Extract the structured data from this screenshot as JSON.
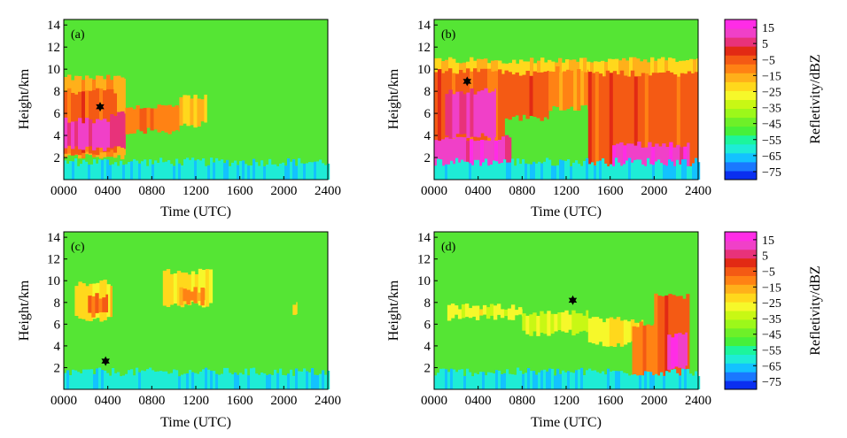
{
  "chart_data": [
    {
      "type": "heatmap",
      "panel_label": "(a)",
      "xlabel": "Time (UTC)",
      "ylabel": "Height/km",
      "xlim": [
        0,
        2400
      ],
      "ylim": [
        0,
        14.5
      ],
      "x_ticks": [
        "0000",
        "0400",
        "0800",
        "1200",
        "1600",
        "2000",
        "2400"
      ],
      "y_ticks": [
        "2",
        "4",
        "6",
        "8",
        "10",
        "12",
        "14"
      ],
      "marker": {
        "time": 330,
        "height": 6.6
      },
      "echo_regions": [
        {
          "t0": 0,
          "t1": 560,
          "h0": 2.1,
          "h1": 9.2,
          "dbz": -15
        },
        {
          "t0": 0,
          "t1": 480,
          "h0": 2.4,
          "h1": 8.0,
          "dbz": -5
        },
        {
          "t0": 0,
          "t1": 420,
          "h0": 2.8,
          "h1": 5.4,
          "dbz": 10
        },
        {
          "t0": 420,
          "t1": 560,
          "h0": 3.0,
          "h1": 6.0,
          "dbz": 5
        },
        {
          "t0": 560,
          "t1": 1050,
          "h0": 4.4,
          "h1": 6.6,
          "dbz": -10
        },
        {
          "t0": 1050,
          "t1": 1300,
          "h0": 5.0,
          "h1": 7.4,
          "dbz": -20
        }
      ]
    },
    {
      "type": "heatmap",
      "panel_label": "(b)",
      "xlabel": "Time (UTC)",
      "ylabel": "Height/km",
      "xlim": [
        0,
        2400
      ],
      "ylim": [
        0,
        14.5
      ],
      "x_ticks": [
        "0000",
        "0400",
        "0800",
        "1200",
        "1600",
        "2000",
        "2400"
      ],
      "y_ticks": [
        "2",
        "4",
        "6",
        "8",
        "10",
        "12",
        "14"
      ],
      "marker": {
        "time": 300,
        "height": 8.9
      },
      "echo_regions": [
        {
          "t0": 0,
          "t1": 2400,
          "h0": 7.0,
          "h1": 10.8,
          "dbz": -20
        },
        {
          "t0": 0,
          "t1": 640,
          "h0": 0.2,
          "h1": 9.8,
          "dbz": -5
        },
        {
          "t0": 0,
          "t1": 700,
          "h0": 0.2,
          "h1": 3.8,
          "dbz": 12
        },
        {
          "t0": 100,
          "t1": 560,
          "h0": 4.0,
          "h1": 8.0,
          "dbz": 10
        },
        {
          "t0": 640,
          "t1": 1040,
          "h0": 5.6,
          "h1": 9.6,
          "dbz": -5
        },
        {
          "t0": 1040,
          "t1": 1400,
          "h0": 6.5,
          "h1": 10.0,
          "dbz": -12
        },
        {
          "t0": 1400,
          "t1": 2400,
          "h0": 0.2,
          "h1": 9.6,
          "dbz": -5
        },
        {
          "t0": 1620,
          "t1": 2320,
          "h0": 0.3,
          "h1": 3.2,
          "dbz": 12
        }
      ]
    },
    {
      "type": "heatmap",
      "panel_label": "(c)",
      "xlabel": "Time (UTC)",
      "ylabel": "Height/km",
      "xlim": [
        0,
        2400
      ],
      "ylim": [
        0,
        14.5
      ],
      "x_ticks": [
        "0000",
        "0400",
        "0800",
        "1200",
        "1600",
        "2000",
        "2400"
      ],
      "y_ticks": [
        "2",
        "4",
        "6",
        "8",
        "10",
        "12",
        "14"
      ],
      "marker": {
        "time": 380,
        "height": 2.6
      },
      "echo_regions": [
        {
          "t0": 100,
          "t1": 440,
          "h0": 6.5,
          "h1": 9.8,
          "dbz": -22
        },
        {
          "t0": 220,
          "t1": 400,
          "h0": 6.8,
          "h1": 8.6,
          "dbz": -8
        },
        {
          "t0": 900,
          "t1": 1350,
          "h0": 7.8,
          "h1": 10.8,
          "dbz": -22
        },
        {
          "t0": 1050,
          "t1": 1280,
          "h0": 8.0,
          "h1": 9.2,
          "dbz": -12
        },
        {
          "t0": 2080,
          "t1": 2120,
          "h0": 6.8,
          "h1": 7.8,
          "dbz": -22
        }
      ]
    },
    {
      "type": "heatmap",
      "panel_label": "(d)",
      "xlabel": "Time (UTC)",
      "ylabel": "Height/km",
      "xlim": [
        0,
        2400
      ],
      "ylim": [
        0,
        14.5
      ],
      "x_ticks": [
        "0000",
        "0400",
        "0800",
        "1200",
        "1600",
        "2000",
        "2400"
      ],
      "y_ticks": [
        "2",
        "4",
        "6",
        "8",
        "10",
        "12",
        "14"
      ],
      "marker": {
        "time": 1260,
        "height": 8.2
      },
      "echo_regions": [
        {
          "t0": 120,
          "t1": 800,
          "h0": 6.6,
          "h1": 7.6,
          "dbz": -28
        },
        {
          "t0": 800,
          "t1": 1400,
          "h0": 5.2,
          "h1": 7.0,
          "dbz": -30
        },
        {
          "t0": 1400,
          "t1": 1900,
          "h0": 4.2,
          "h1": 6.4,
          "dbz": -25
        },
        {
          "t0": 1800,
          "t1": 2300,
          "h0": 0.3,
          "h1": 6.0,
          "dbz": -10
        },
        {
          "t0": 2000,
          "t1": 2320,
          "h0": 1.0,
          "h1": 8.6,
          "dbz": -5
        },
        {
          "t0": 2120,
          "t1": 2300,
          "h0": 2.0,
          "h1": 5.0,
          "dbz": 12
        }
      ]
    }
  ],
  "colorbar": {
    "label": "Refletivity/dBZ",
    "tick_labels": [
      "15",
      "5",
      "−5",
      "−15",
      "−25",
      "−35",
      "−45",
      "−55",
      "−65",
      "−75"
    ],
    "range": [
      -80,
      20
    ],
    "colors": [
      "#0a2ff0",
      "#1a78ff",
      "#13c2ff",
      "#1eecd6",
      "#1cf59c",
      "#46f03a",
      "#6ef028",
      "#9cf81a",
      "#c8f814",
      "#f6f82a",
      "#ffd81c",
      "#ffb01a",
      "#ff8214",
      "#f45a14",
      "#e22a14",
      "#e8327a",
      "#f040c8",
      "#ff2ce6"
    ]
  }
}
